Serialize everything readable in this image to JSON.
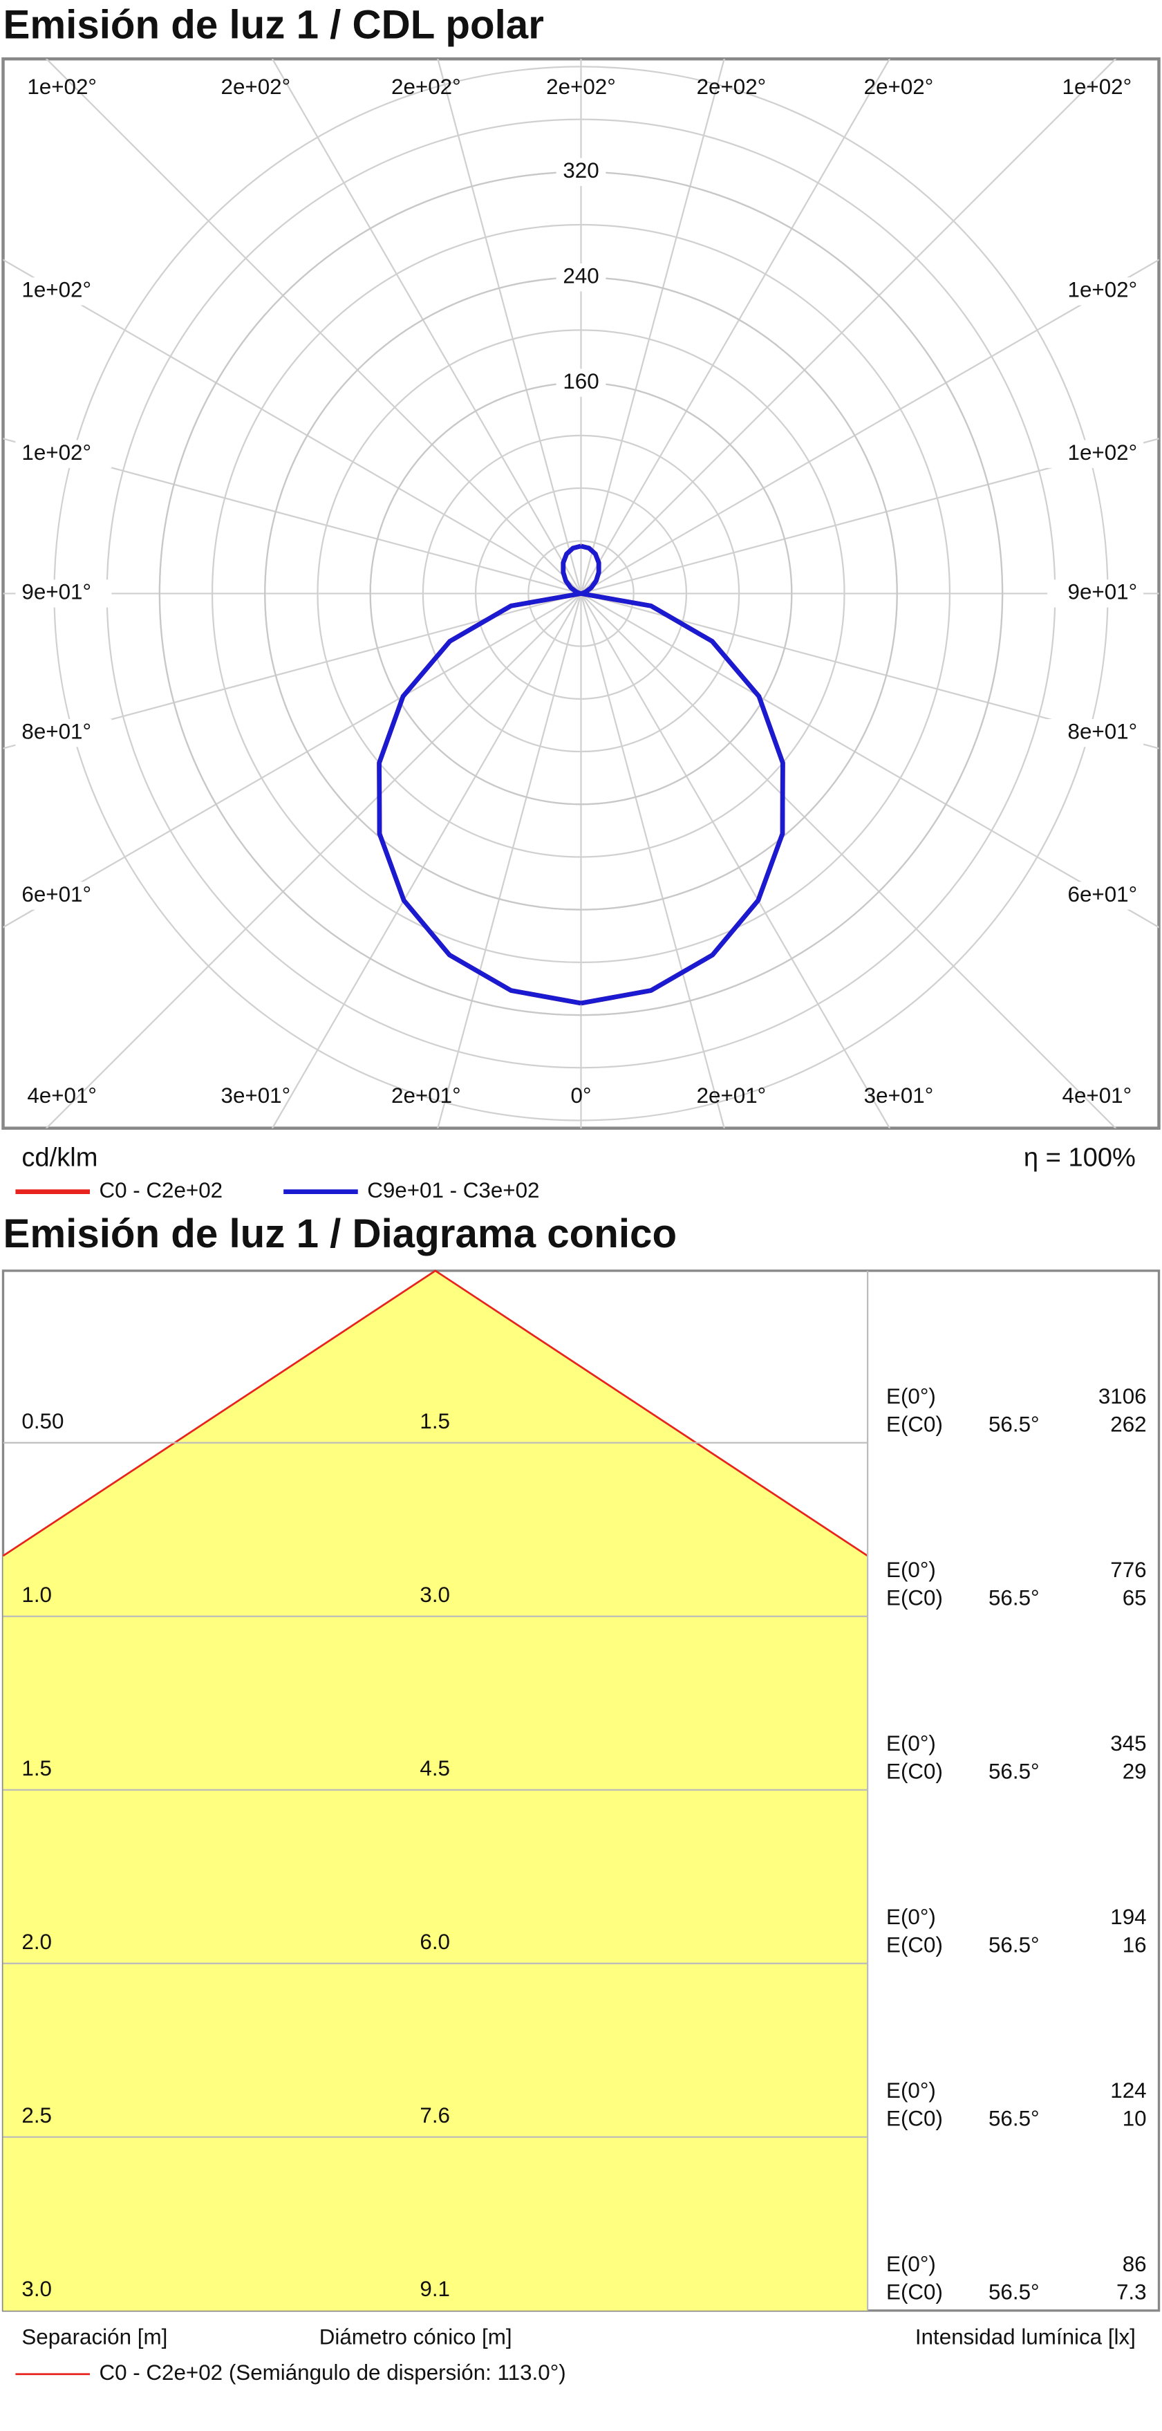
{
  "chart_data": {
    "type": "polar",
    "title": "Emisión de luz 1 / CDL polar",
    "unit_label": "cd/klm",
    "efficiency_label": "η = 100%",
    "rlim": [
      0,
      400
    ],
    "rticks": [
      160,
      240,
      320
    ],
    "angle_labels": {
      "top": [
        "1e+02°",
        "2e+02°",
        "2e+02°",
        "2e+02°",
        "2e+02°",
        "2e+02°",
        "1e+02°"
      ],
      "left": [
        "1e+02°",
        "1e+02°",
        "9e+01°",
        "8e+01°",
        "6e+01°"
      ],
      "right": [
        "1e+02°",
        "1e+02°",
        "9e+01°",
        "8e+01°",
        "6e+01°"
      ],
      "bottom": [
        "4e+01°",
        "3e+01°",
        "2e+01°",
        "0°",
        "2e+01°",
        "3e+01°",
        "4e+01°"
      ]
    },
    "x": [
      0,
      10,
      20,
      30,
      40,
      50,
      60,
      70,
      80,
      90,
      100,
      110,
      120,
      130,
      140,
      150,
      160,
      170,
      180
    ],
    "series": [
      {
        "name": "C0 - C2e+02",
        "color": "#e8221c",
        "values": [
          311,
          306,
          292,
          269,
          238,
          200,
          156,
          106,
          54,
          0,
          1,
          4,
          9,
          15,
          21,
          27,
          32,
          35,
          36
        ]
      },
      {
        "name": "C9e+01 - C3e+02",
        "color": "#1a1ad0",
        "values": [
          311,
          306,
          292,
          269,
          238,
          200,
          156,
          106,
          54,
          0,
          1,
          4,
          9,
          15,
          21,
          27,
          32,
          35,
          36
        ]
      }
    ]
  },
  "cone_diagram": {
    "title": "Emisión de luz 1 / Diagrama conico",
    "e0_label": "E(0°)",
    "ec0_label": "E(C0)",
    "rows": [
      {
        "distance": "0.50",
        "diameter": "1.5",
        "e0": "3106",
        "angle": "56.5°",
        "ec0": "262"
      },
      {
        "distance": "1.0",
        "diameter": "3.0",
        "e0": "776",
        "angle": "56.5°",
        "ec0": "65"
      },
      {
        "distance": "1.5",
        "diameter": "4.5",
        "e0": "345",
        "angle": "56.5°",
        "ec0": "29"
      },
      {
        "distance": "2.0",
        "diameter": "6.0",
        "e0": "194",
        "angle": "56.5°",
        "ec0": "16"
      },
      {
        "distance": "2.5",
        "diameter": "7.6",
        "e0": "124",
        "angle": "56.5°",
        "ec0": "10"
      },
      {
        "distance": "3.0",
        "diameter": "9.1",
        "e0": "86",
        "angle": "56.5°",
        "ec0": "7.3"
      }
    ],
    "x_label_left": "Separación [m]",
    "x_label_mid": "Diámetro cónico [m]",
    "x_label_right": "Intensidad lumínica [lx]",
    "legend": "C0 - C2e+02 (Semiángulo de dispersión: 113.0°)"
  }
}
